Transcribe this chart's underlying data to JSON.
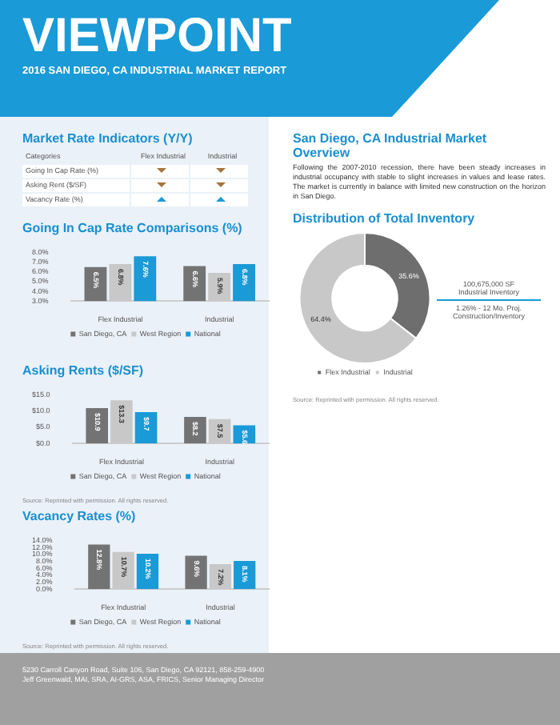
{
  "chart_data": [
    {
      "type": "other",
      "title": "VIEWPOINT",
      "subtitle": "2016 SAN DIEGO, CA INDUSTRIAL MARKET REPORT"
    },
    {
      "type": "other",
      "title": "Market Rate Indicators (Y/Y)",
      "annotations": [
        "Categories",
        "Flex Industrial",
        "Industrial",
        "Going In Cap Rate (%)",
        "Asking Rent ($/SF)",
        "Vacancy Rate (%)"
      ]
    },
    {
      "type": "bar",
      "title": "Going In Cap Rate Comparisons (%)",
      "categories": [
        "Flex Industrial",
        "Industrial"
      ],
      "series": [
        {
          "name": "San Diego, CA",
          "color": "#737373",
          "values": [
            6.5,
            6.6
          ],
          "value_labels": [
            "6.5%",
            "6.6%"
          ]
        },
        {
          "name": "West Region",
          "color": "#c8c8c8",
          "values": [
            6.8,
            5.9
          ],
          "value_labels": [
            "6.8%",
            "5.9%"
          ]
        },
        {
          "name": "National",
          "color": "#1a9ad6",
          "values": [
            7.6,
            6.8
          ],
          "value_labels": [
            "7.6%",
            "6.8%"
          ]
        }
      ],
      "ylim": [
        3,
        8
      ],
      "yticks": [
        {
          "value": 3,
          "label": "3.0%"
        },
        {
          "value": 4,
          "label": "4.0%"
        },
        {
          "value": 5,
          "label": "5.0%"
        },
        {
          "value": 6,
          "label": "6.0%"
        },
        {
          "value": 7,
          "label": "7.0%"
        },
        {
          "value": 8,
          "label": "8.0%"
        }
      ],
      "legend": "bottom"
    },
    {
      "type": "bar",
      "title": "Asking Rents ($/SF)",
      "categories": [
        "Flex Industrial",
        "Industrial"
      ],
      "series": [
        {
          "name": "San Diego, CA",
          "color": "#737373",
          "values": [
            10.9,
            8.2
          ],
          "value_labels": [
            "$10.9",
            "$8.2"
          ]
        },
        {
          "name": "West Region",
          "color": "#c8c8c8",
          "values": [
            13.3,
            7.5
          ],
          "value_labels": [
            "$13.3",
            "$7.5"
          ]
        },
        {
          "name": "National",
          "color": "#1a9ad6",
          "values": [
            9.7,
            5.6
          ],
          "value_labels": [
            "$9.7",
            "$5.6"
          ]
        }
      ],
      "ylim": [
        0,
        15
      ],
      "yticks": [
        {
          "value": 0,
          "label": "$0.0"
        },
        {
          "value": 5,
          "label": "$5.0"
        },
        {
          "value": 10,
          "label": "$10.0"
        },
        {
          "value": 15,
          "label": "$15.0"
        }
      ],
      "legend": "bottom",
      "annotations": [
        "Source: Reprinted with permission. All rights reserved."
      ]
    },
    {
      "type": "bar",
      "title": "Vacancy Rates (%)",
      "categories": [
        "Flex Industrial",
        "Industrial"
      ],
      "series": [
        {
          "name": "San Diego, CA",
          "color": "#737373",
          "values": [
            12.8,
            9.6
          ],
          "value_labels": [
            "12.8%",
            "9.6%"
          ]
        },
        {
          "name": "West Region",
          "color": "#c8c8c8",
          "values": [
            10.7,
            7.2
          ],
          "value_labels": [
            "10.7%",
            "7.2%"
          ]
        },
        {
          "name": "National",
          "color": "#1a9ad6",
          "values": [
            10.2,
            8.1
          ],
          "value_labels": [
            "10.2%",
            "8.1%"
          ]
        }
      ],
      "ylim": [
        0,
        14
      ],
      "yticks": [
        {
          "value": 0,
          "label": "0.0%"
        },
        {
          "value": 2,
          "label": "2.0%"
        },
        {
          "value": 4,
          "label": "4.0%"
        },
        {
          "value": 6,
          "label": "6.0%"
        },
        {
          "value": 8,
          "label": "8.0%"
        },
        {
          "value": 10,
          "label": "10.0%"
        },
        {
          "value": 12,
          "label": "12.0%"
        },
        {
          "value": 14,
          "label": "14.0%"
        }
      ],
      "legend": "bottom",
      "annotations": [
        "Source: Reprinted with permission. All rights reserved."
      ]
    },
    {
      "type": "other",
      "title": "San Diego, CA Industrial Market Overview",
      "annotations": [
        "Following the 2007-2010 recession, there have been steady increases in industrial occupancy with stable to slight increases in values and lease rates.  The market is currently in balance with limited new construction on the horizon in San Diego."
      ]
    },
    {
      "type": "donut",
      "title": "Distribution of Total Inventory",
      "categories": [
        "Flex Industrial",
        "Industrial"
      ],
      "values": [
        35.6,
        64.4
      ],
      "colors": [
        "#6e6e6e",
        "#c8c8c8"
      ],
      "value_labels": [
        "35.6%",
        "64.4%"
      ],
      "legend": "bottom",
      "annotations": [
        "100,675,000 SF",
        "Industrial Inventory",
        "1.26% - 12 Mo. Proj.",
        "Construction/Inventory",
        "Source: Reprinted with permission. All rights reserved."
      ]
    },
    {
      "type": "other",
      "annotations": [
        "5230 Carroll Canyon Road, Suite 106, San Diego, CA 92121, 858-259-4900",
        "Jeff Greenwald, MAI, SRA, AI-GRS, ASA, FRICS, Senior Managing Director"
      ]
    }
  ]
}
